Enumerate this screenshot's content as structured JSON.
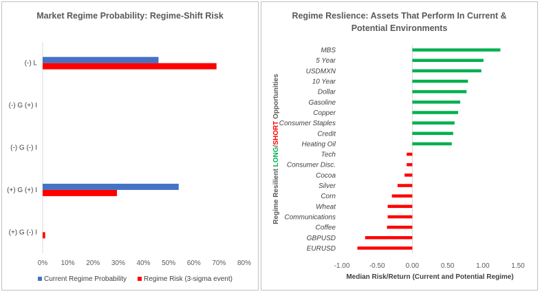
{
  "chart_data": [
    {
      "type": "bar",
      "orientation": "horizontal",
      "title": "Market Regime Probability: Regime-Shift Risk",
      "categories": [
        "(-) L",
        "(-) G (+) I",
        "(-) G (-) I",
        "(+) G (+) I",
        "(+) G (-) I"
      ],
      "series": [
        {
          "name": "Current Regime Probability",
          "color": "#4472c4",
          "values": [
            0.46,
            0,
            0,
            0.54,
            0
          ]
        },
        {
          "name": "Regime Risk (3-sigma event)",
          "color": "#ff0000",
          "values": [
            0.69,
            0,
            0,
            0.295,
            0.01
          ]
        }
      ],
      "xlim": [
        0,
        0.8
      ],
      "xticks": [
        "0%",
        "10%",
        "20%",
        "30%",
        "40%",
        "50%",
        "60%",
        "70%",
        "80%"
      ],
      "legend": "bottom",
      "grid": false
    },
    {
      "type": "bar",
      "orientation": "horizontal",
      "title": "Regime Reslience: Assets That Perform In Current & Potential Environments",
      "xlabel": "Median Risk/Return (Current and Potential Regime)",
      "ylabel_parts": [
        {
          "text": "Regime Resilient ",
          "color": "#595959"
        },
        {
          "text": "LONG",
          "color": "#00b050"
        },
        {
          "text": "/",
          "color": "#595959"
        },
        {
          "text": "SHORT",
          "color": "#ff0000"
        },
        {
          "text": " Opportunities",
          "color": "#595959"
        }
      ],
      "categories": [
        "MBS",
        "5 Year",
        "USDMXN",
        "10 Year",
        "Dollar",
        "Gasoline",
        "Copper",
        "Consumer Staples",
        "Credit",
        "Heating Oil",
        "Tech",
        "Consumer Disc.",
        "Cocoa",
        "Silver",
        "Corn",
        "Wheat",
        "Communications",
        "Coffee",
        "GBPUSD",
        "EURUSD"
      ],
      "values": [
        1.25,
        1.01,
        0.98,
        0.79,
        0.77,
        0.68,
        0.65,
        0.6,
        0.58,
        0.56,
        -0.08,
        -0.08,
        -0.11,
        -0.21,
        -0.29,
        -0.35,
        -0.35,
        -0.36,
        -0.67,
        -0.78
      ],
      "positive_color": "#00b050",
      "negative_color": "#ff0000",
      "xlim": [
        -1.0,
        1.5
      ],
      "xticks": [
        "-1.00",
        "-0.50",
        "0.00",
        "0.50",
        "1.00",
        "1.50"
      ],
      "grid": false
    }
  ]
}
